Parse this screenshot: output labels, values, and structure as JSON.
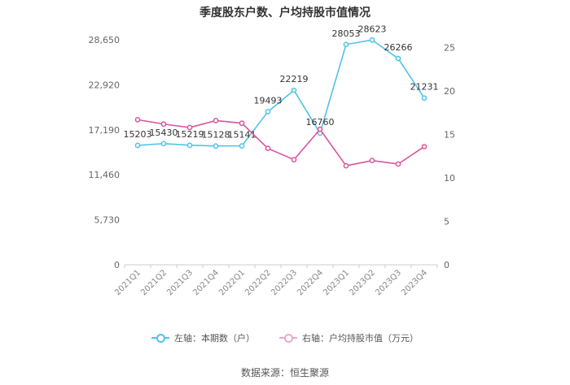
{
  "chart_data": {
    "type": "line",
    "title": "季度股东户数、户均持股市值情况",
    "categories": [
      "2021Q1",
      "2021Q2",
      "2021Q3",
      "2021Q4",
      "2022Q1",
      "2022Q2",
      "2022Q3",
      "2022Q4",
      "2023Q1",
      "2023Q2",
      "2023Q3",
      "2023Q4"
    ],
    "y_left": {
      "ylim": [
        0,
        28650
      ],
      "ticks": [
        "0",
        "5,730",
        "11,460",
        "17,190",
        "22,920",
        "28,650"
      ]
    },
    "y_right": {
      "ylim": [
        0,
        25.9
      ],
      "ticks": [
        "0",
        "5",
        "10",
        "15",
        "20",
        "25"
      ]
    },
    "series": [
      {
        "name": "左轴：本期数（户）",
        "axis": "left",
        "color": "#4fc3e8",
        "values": [
          15203,
          15430,
          15219,
          15128,
          15141,
          19493,
          22219,
          16760,
          28053,
          28623,
          26266,
          21231
        ],
        "labels": [
          "15203",
          "15430",
          "15219",
          "15128",
          "15141",
          "19493",
          "22219",
          "16760",
          "28053",
          "28623",
          "26266",
          "21231"
        ]
      },
      {
        "name": "右轴：户均持股市值（万元）",
        "axis": "right",
        "color": "#d9559e",
        "values": [
          16.7,
          16.2,
          15.8,
          16.6,
          16.3,
          13.4,
          12.1,
          15.6,
          11.4,
          12.0,
          11.6,
          13.6
        ]
      }
    ],
    "legend_position": "bottom",
    "grid": false
  },
  "source_text": "数据来源：恒生聚源"
}
